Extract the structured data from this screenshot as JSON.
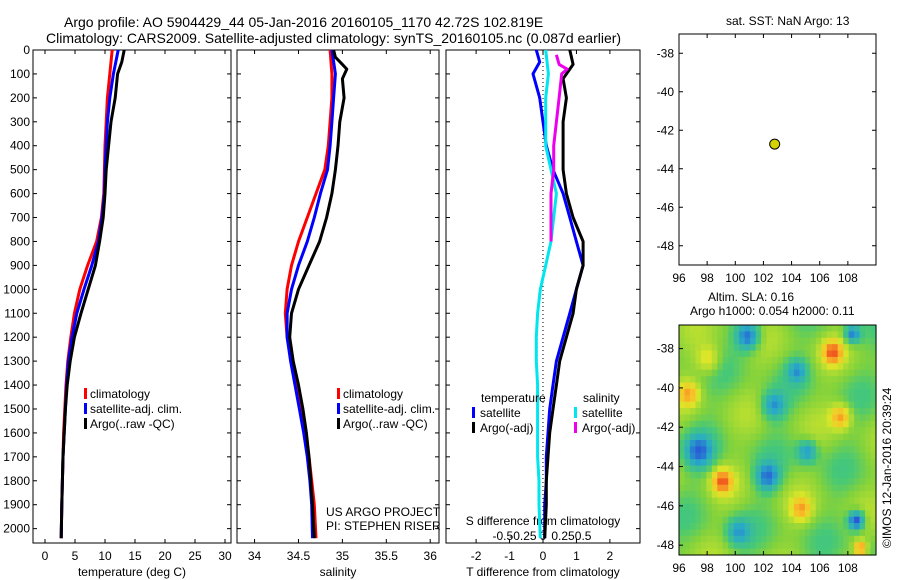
{
  "header": {
    "line1": "Argo profile: AO 5904429_44 05-Jan-2016 20160105_1170 42.72S 102.819E",
    "line2": "Climatology: CARS2009. Satellite-adjusted climatology: synTS_20160105.nc (0.087d earlier)"
  },
  "colors": {
    "climatology": "#ff0000",
    "satellite": "#0000ff",
    "argo": "#000000",
    "sal_satellite": "#00e5ee",
    "sal_argo": "#ee00ee"
  },
  "chart_data": [
    {
      "type": "line",
      "xlabel": "temperature (deg C)",
      "xlim": [
        -2,
        31
      ],
      "xticks": [
        0,
        5,
        10,
        15,
        20,
        25,
        30
      ],
      "ylim": [
        2060,
        0
      ],
      "yticks": [
        0,
        100,
        200,
        300,
        400,
        500,
        600,
        700,
        800,
        900,
        1000,
        1100,
        1200,
        1300,
        1400,
        1500,
        1600,
        1700,
        1800,
        1900,
        2000
      ],
      "legend": [
        "climatology",
        "satellite-adj. clim.",
        "Argo(..raw -QC)"
      ],
      "series": [
        {
          "name": "climatology",
          "color": "#ff0000",
          "points": [
            [
              11.2,
              0
            ],
            [
              10.8,
              100
            ],
            [
              10.4,
              200
            ],
            [
              10.2,
              300
            ],
            [
              10.0,
              400
            ],
            [
              9.9,
              500
            ],
            [
              9.8,
              600
            ],
            [
              9.4,
              700
            ],
            [
              8.6,
              800
            ],
            [
              7.1,
              900
            ],
            [
              5.8,
              1000
            ],
            [
              4.9,
              1100
            ],
            [
              4.3,
              1200
            ],
            [
              3.8,
              1300
            ],
            [
              3.5,
              1400
            ],
            [
              3.3,
              1500
            ],
            [
              3.1,
              1600
            ],
            [
              3.0,
              1700
            ],
            [
              2.9,
              1800
            ],
            [
              2.8,
              1900
            ],
            [
              2.7,
              2040
            ]
          ]
        },
        {
          "name": "satellite-adj. clim.",
          "color": "#0000ff",
          "points": [
            [
              12.2,
              0
            ],
            [
              11.4,
              100
            ],
            [
              10.8,
              200
            ],
            [
              10.4,
              300
            ],
            [
              10.2,
              400
            ],
            [
              10.0,
              500
            ],
            [
              9.9,
              600
            ],
            [
              9.5,
              700
            ],
            [
              8.9,
              800
            ],
            [
              7.8,
              900
            ],
            [
              6.5,
              1000
            ],
            [
              5.3,
              1100
            ],
            [
              4.5,
              1200
            ],
            [
              3.9,
              1300
            ],
            [
              3.6,
              1400
            ],
            [
              3.4,
              1500
            ],
            [
              3.2,
              1600
            ],
            [
              3.0,
              1700
            ],
            [
              2.9,
              1800
            ],
            [
              2.8,
              1900
            ],
            [
              2.7,
              2040
            ]
          ]
        },
        {
          "name": "Argo(..raw -QC)",
          "color": "#000000",
          "points": [
            [
              13.2,
              0
            ],
            [
              12.8,
              50
            ],
            [
              12.1,
              100
            ],
            [
              11.7,
              200
            ],
            [
              11.0,
              300
            ],
            [
              10.6,
              400
            ],
            [
              10.2,
              500
            ],
            [
              10.0,
              600
            ],
            [
              9.7,
              700
            ],
            [
              9.1,
              800
            ],
            [
              8.4,
              900
            ],
            [
              7.2,
              1000
            ],
            [
              6.0,
              1100
            ],
            [
              4.9,
              1200
            ],
            [
              4.2,
              1300
            ],
            [
              3.7,
              1400
            ],
            [
              3.4,
              1500
            ],
            [
              3.2,
              1600
            ],
            [
              3.0,
              1700
            ],
            [
              2.9,
              1800
            ],
            [
              2.8,
              1900
            ],
            [
              2.7,
              2040
            ]
          ]
        }
      ]
    },
    {
      "type": "line",
      "xlabel": "salinity",
      "xlim": [
        33.8,
        36.1
      ],
      "xticks": [
        34,
        34.5,
        35,
        35.5,
        36
      ],
      "ylim": [
        2060,
        0
      ],
      "legend": [
        "climatology",
        "satellite-adj. clim.",
        "Argo(..raw -QC)"
      ],
      "annotations": [
        "US ARGO PROJECT",
        "PI: STEPHEN RISER"
      ],
      "series": [
        {
          "name": "climatology",
          "color": "#ff0000",
          "points": [
            [
              34.86,
              0
            ],
            [
              34.88,
              100
            ],
            [
              34.88,
              200
            ],
            [
              34.86,
              300
            ],
            [
              34.84,
              400
            ],
            [
              34.8,
              500
            ],
            [
              34.7,
              600
            ],
            [
              34.6,
              700
            ],
            [
              34.5,
              800
            ],
            [
              34.42,
              900
            ],
            [
              34.37,
              1000
            ],
            [
              34.35,
              1100
            ],
            [
              34.37,
              1200
            ],
            [
              34.42,
              1300
            ],
            [
              34.48,
              1400
            ],
            [
              34.53,
              1500
            ],
            [
              34.58,
              1600
            ],
            [
              34.62,
              1700
            ],
            [
              34.65,
              1800
            ],
            [
              34.68,
              1900
            ],
            [
              34.7,
              2040
            ]
          ]
        },
        {
          "name": "satellite-adj. clim.",
          "color": "#0000ff",
          "points": [
            [
              34.88,
              0
            ],
            [
              34.92,
              100
            ],
            [
              34.9,
              200
            ],
            [
              34.88,
              300
            ],
            [
              34.86,
              400
            ],
            [
              34.83,
              500
            ],
            [
              34.75,
              600
            ],
            [
              34.68,
              700
            ],
            [
              34.6,
              800
            ],
            [
              34.5,
              900
            ],
            [
              34.42,
              1000
            ],
            [
              34.37,
              1100
            ],
            [
              34.37,
              1200
            ],
            [
              34.41,
              1300
            ],
            [
              34.46,
              1400
            ],
            [
              34.51,
              1500
            ],
            [
              34.56,
              1600
            ],
            [
              34.6,
              1700
            ],
            [
              34.63,
              1800
            ],
            [
              34.65,
              1900
            ],
            [
              34.66,
              2040
            ]
          ]
        },
        {
          "name": "Argo(..raw -QC)",
          "color": "#000000",
          "points": [
            [
              34.9,
              0
            ],
            [
              34.92,
              30
            ],
            [
              35.0,
              60
            ],
            [
              35.05,
              80
            ],
            [
              35.0,
              120
            ],
            [
              35.02,
              200
            ],
            [
              34.97,
              300
            ],
            [
              34.95,
              400
            ],
            [
              34.92,
              500
            ],
            [
              34.88,
              600
            ],
            [
              34.82,
              700
            ],
            [
              34.74,
              800
            ],
            [
              34.62,
              900
            ],
            [
              34.5,
              1000
            ],
            [
              34.42,
              1100
            ],
            [
              34.4,
              1200
            ],
            [
              34.44,
              1300
            ],
            [
              34.5,
              1400
            ],
            [
              34.55,
              1500
            ],
            [
              34.59,
              1600
            ],
            [
              34.62,
              1700
            ],
            [
              34.64,
              1800
            ],
            [
              34.66,
              1900
            ],
            [
              34.68,
              2040
            ]
          ]
        }
      ]
    },
    {
      "type": "line",
      "xlabel": "T difference from climatology",
      "xlabel_top": "S difference from climatology",
      "xlim": [
        -2.9,
        2.9
      ],
      "xticks": [
        -2,
        -1,
        0,
        1,
        2
      ],
      "xticks_top": [
        "-0.5",
        "-0.25",
        "0",
        "0.25",
        "0.5"
      ],
      "ylim": [
        2060,
        0
      ],
      "legend": {
        "temperature": [
          "satellite",
          "Argo(-adj)"
        ],
        "salinity": [
          "satellite",
          "Argo(-adj)"
        ]
      },
      "series": [
        {
          "name": "temperature satellite",
          "color": "#0000ff",
          "points": [
            [
              -0.2,
              0
            ],
            [
              -0.1,
              50
            ],
            [
              -0.3,
              100
            ],
            [
              -0.1,
              200
            ],
            [
              0.0,
              300
            ],
            [
              0.1,
              400
            ],
            [
              0.3,
              500
            ],
            [
              0.6,
              600
            ],
            [
              0.8,
              700
            ],
            [
              1.0,
              800
            ],
            [
              1.2,
              900
            ],
            [
              1.0,
              1000
            ],
            [
              0.8,
              1100
            ],
            [
              0.6,
              1200
            ],
            [
              0.4,
              1300
            ],
            [
              0.3,
              1400
            ],
            [
              0.2,
              1500
            ],
            [
              0.15,
              1600
            ],
            [
              0.1,
              1700
            ],
            [
              0.1,
              1800
            ],
            [
              0.05,
              1900
            ],
            [
              0.05,
              2040
            ]
          ]
        },
        {
          "name": "temperature Argo(-adj)",
          "color": "#000000",
          "points": [
            [
              0.8,
              0
            ],
            [
              0.9,
              60
            ],
            [
              0.6,
              120
            ],
            [
              0.7,
              200
            ],
            [
              0.6,
              300
            ],
            [
              0.6,
              400
            ],
            [
              0.6,
              500
            ],
            [
              0.7,
              600
            ],
            [
              0.9,
              700
            ],
            [
              1.2,
              800
            ],
            [
              1.2,
              900
            ],
            [
              1.0,
              1000
            ],
            [
              0.9,
              1100
            ],
            [
              0.7,
              1200
            ],
            [
              0.5,
              1300
            ],
            [
              0.4,
              1400
            ],
            [
              0.3,
              1500
            ],
            [
              0.2,
              1600
            ],
            [
              0.15,
              1700
            ],
            [
              0.1,
              1800
            ],
            [
              0.1,
              1900
            ],
            [
              0.05,
              2040
            ]
          ]
        },
        {
          "name": "salinity satellite",
          "color": "#00e5ee",
          "points": [
            [
              0.02,
              0
            ],
            [
              0.04,
              100
            ],
            [
              0.02,
              200
            ],
            [
              0.02,
              300
            ],
            [
              0.02,
              400
            ],
            [
              0.06,
              500
            ],
            [
              0.1,
              600
            ],
            [
              0.08,
              700
            ],
            [
              0.06,
              800
            ],
            [
              0.02,
              900
            ],
            [
              -0.02,
              1000
            ],
            [
              -0.04,
              1100
            ],
            [
              -0.05,
              1200
            ],
            [
              -0.05,
              1300
            ],
            [
              -0.04,
              1400
            ],
            [
              -0.04,
              1500
            ],
            [
              -0.04,
              1600
            ],
            [
              -0.04,
              1700
            ],
            [
              -0.03,
              1800
            ],
            [
              -0.03,
              1900
            ],
            [
              -0.02,
              2040
            ]
          ]
        },
        {
          "name": "salinity Argo(-adj)",
          "color": "#ee00ee",
          "points": [
            [
              0.1,
              20
            ],
            [
              0.12,
              60
            ],
            [
              0.18,
              80
            ],
            [
              0.14,
              100
            ],
            [
              0.12,
              200
            ],
            [
              0.1,
              300
            ],
            [
              0.08,
              400
            ],
            [
              0.08,
              500
            ],
            [
              0.06,
              600
            ],
            [
              0.06,
              700
            ],
            [
              0.06,
              800
            ]
          ]
        }
      ]
    },
    {
      "type": "scatter",
      "title": "sat. SST: NaN Argo: 13",
      "xlim": [
        96,
        110
      ],
      "xticks": [
        96,
        98,
        100,
        102,
        104,
        106,
        108
      ],
      "ylim": [
        -49,
        -37
      ],
      "yticks": [
        -38,
        -40,
        -42,
        -44,
        -46,
        -48
      ],
      "points": [
        [
          102.8,
          -42.72
        ]
      ]
    },
    {
      "type": "heatmap",
      "title_line1": "Altim. SLA: 0.16",
      "title_line2": "Argo h1000: 0.054 h2000: 0.11",
      "xlim": [
        96,
        110
      ],
      "xticks": [
        96,
        98,
        100,
        102,
        104,
        106,
        108
      ],
      "ylim": [
        -48.5,
        -36.8
      ],
      "yticks": [
        -38,
        -40,
        -42,
        -44,
        -46,
        -48
      ],
      "side_label": "©IMOS 12-Jan-2016 20:39:24"
    }
  ]
}
